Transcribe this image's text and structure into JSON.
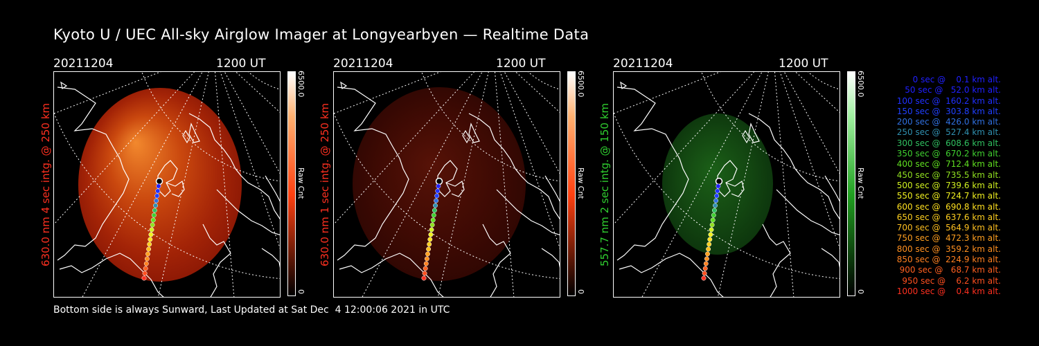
{
  "title": "Kyoto U / UEC All-sky Airglow Imager at Longyearbyen — Realtime Data",
  "panels": [
    {
      "date": "20211204",
      "time": "1200 UT",
      "ylabel": "630.0 nm 4 sec intg. @ 250 km",
      "ylabel_color": "#ff3020",
      "glow": "red-bright",
      "cbar_max": "6500.0",
      "cbar_min": "0",
      "cbar_unit": "Raw Cnt",
      "cbar_color": "#ff4010"
    },
    {
      "date": "20211204",
      "time": "1200 UT",
      "ylabel": "630.0 nm 1 sec intg. @ 250 km",
      "ylabel_color": "#ff3020",
      "glow": "red-dim",
      "cbar_max": "6500.0",
      "cbar_min": "0",
      "cbar_unit": "Raw Cnt",
      "cbar_color": "#ff4010"
    },
    {
      "date": "20211204",
      "time": "1200 UT",
      "ylabel": "557.7 nm 2 sec intg. @ 150 km",
      "ylabel_color": "#30d030",
      "glow": "green",
      "cbar_max": "6500.0",
      "cbar_min": "0",
      "cbar_unit": "Raw Cnt",
      "cbar_color": "#20a020"
    }
  ],
  "legend": [
    {
      "text": "   0 sec @    0.1 km alt.",
      "color": "#2020ff"
    },
    {
      "text": "  50 sec @   52.0 km alt.",
      "color": "#2020ff"
    },
    {
      "text": " 100 sec @  160.2 km alt.",
      "color": "#2030ff"
    },
    {
      "text": " 150 sec @  303.8 km alt.",
      "color": "#2040ff"
    },
    {
      "text": " 200 sec @  426.0 km alt.",
      "color": "#3070e0"
    },
    {
      "text": " 250 sec @  527.4 km alt.",
      "color": "#3090b0"
    },
    {
      "text": " 300 sec @  608.6 km alt.",
      "color": "#30c060"
    },
    {
      "text": " 350 sec @  670.2 km alt.",
      "color": "#40d030"
    },
    {
      "text": " 400 sec @  712.4 km alt.",
      "color": "#60e020"
    },
    {
      "text": " 450 sec @  735.5 km alt.",
      "color": "#90e020"
    },
    {
      "text": " 500 sec @  739.6 km alt.",
      "color": "#d0f020"
    },
    {
      "text": " 550 sec @  724.7 km alt.",
      "color": "#f0f020"
    },
    {
      "text": " 600 sec @  690.8 km alt.",
      "color": "#ffe020"
    },
    {
      "text": " 650 sec @  637.6 km alt.",
      "color": "#ffd020"
    },
    {
      "text": " 700 sec @  564.9 km alt.",
      "color": "#ffc020"
    },
    {
      "text": " 750 sec @  472.3 km alt.",
      "color": "#ffa020"
    },
    {
      "text": " 800 sec @  359.2 km alt.",
      "color": "#ff9020"
    },
    {
      "text": " 850 sec @  224.9 km alt.",
      "color": "#ff8020"
    },
    {
      "text": " 900 sec @   68.7 km alt.",
      "color": "#ff6020"
    },
    {
      "text": " 950 sec @    6.2 km alt.",
      "color": "#ff5020"
    },
    {
      "text": "1000 sec @    0.4 km alt.",
      "color": "#ff3020"
    }
  ],
  "footer": "Bottom side is always Sunward, Last Updated at Sat Dec  4 12:00:06 2021 in UTC"
}
